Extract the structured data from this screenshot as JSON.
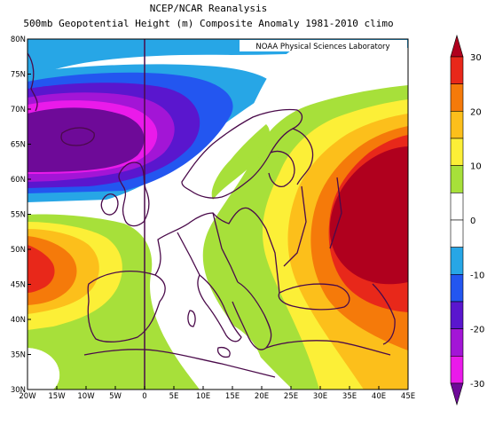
{
  "titles": {
    "line1": "NCEP/NCAR Reanalysis",
    "line2": "500mb Geopotential Height (m) Composite Anomaly 1981-2010 climo"
  },
  "credit": "NOAA Physical Sciences Laboratory",
  "lat_ticks": [
    "80N",
    "75N",
    "70N",
    "65N",
    "60N",
    "55N",
    "50N",
    "45N",
    "40N",
    "35N",
    "30N"
  ],
  "lon_ticks": [
    "20W",
    "15W",
    "10W",
    "5W",
    "0",
    "5E",
    "10E",
    "15E",
    "20E",
    "25E",
    "30E",
    "35E",
    "40E",
    "45E"
  ],
  "colorbar": {
    "labels": [
      "30",
      "20",
      "10",
      "0",
      "-10",
      "-20",
      "-30"
    ],
    "colors": [
      "#b0001e",
      "#e8281a",
      "#f57a0a",
      "#fcbf1b",
      "#fcef37",
      "#a7e03a",
      "#ffffff",
      "#ffffff",
      "#27a6e6",
      "#2356f0",
      "#5a16ce",
      "#a315d6",
      "#ea1aea",
      "#6e0a98"
    ]
  },
  "anomaly_fields": [
    {
      "name": "scandinavian-positive-anomaly",
      "max": 30
    },
    {
      "name": "north-atlantic-negative-anomaly",
      "min": -30
    },
    {
      "name": "eastern-atlantic-positive-anomaly",
      "max": 20
    }
  ]
}
